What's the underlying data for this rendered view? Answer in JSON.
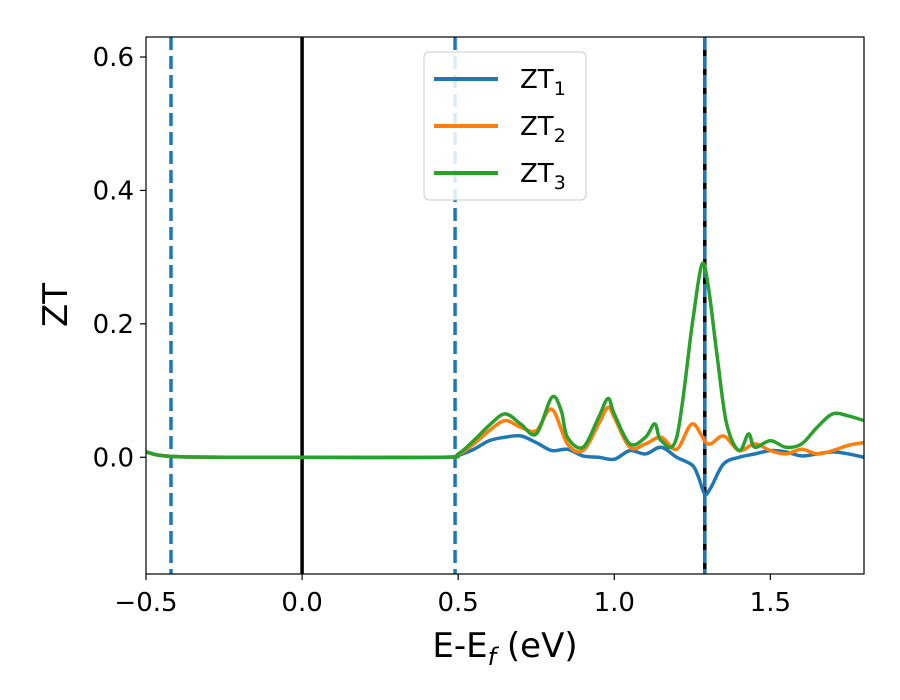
{
  "chart_data": {
    "type": "line",
    "title": "",
    "xlabel": "E-E",
    "xlabel_sub": "f",
    "xlabel_unit": " (eV)",
    "ylabel": "ZT",
    "xlim": [
      -0.5,
      1.8
    ],
    "ylim": [
      -0.175,
      0.63
    ],
    "xticks": [
      -0.5,
      0.0,
      0.5,
      1.0,
      1.5
    ],
    "xtick_labels": [
      "−0.5",
      "0.0",
      "0.5",
      "1.0",
      "1.5"
    ],
    "yticks": [
      0.0,
      0.2,
      0.4,
      0.6
    ],
    "ytick_labels": [
      "0.0",
      "0.2",
      "0.4",
      "0.6"
    ],
    "grid": false,
    "legend_position": "top-center",
    "vertical_lines": [
      {
        "x": -0.42,
        "style": "dashed",
        "color": "#1f77b4"
      },
      {
        "x": 0.0,
        "style": "solid",
        "color": "#000000"
      },
      {
        "x": 0.49,
        "style": "dashed",
        "color": "#1f77b4"
      },
      {
        "x": 1.29,
        "style": "solid",
        "color": "#000000"
      },
      {
        "x": 1.29,
        "style": "dashed",
        "color": "#1f77b4"
      }
    ],
    "series": [
      {
        "name": "ZT",
        "sub": "1",
        "color": "#1f77b4",
        "x": [
          -0.5,
          -0.4,
          0.0,
          0.45,
          0.5,
          0.55,
          0.6,
          0.65,
          0.7,
          0.75,
          0.8,
          0.85,
          0.9,
          0.95,
          1.0,
          1.05,
          1.1,
          1.15,
          1.2,
          1.25,
          1.27,
          1.29,
          1.31,
          1.35,
          1.4,
          1.45,
          1.5,
          1.55,
          1.6,
          1.65,
          1.7,
          1.75,
          1.8
        ],
        "y": [
          0.008,
          0.001,
          0.0,
          0.0,
          0.003,
          0.012,
          0.025,
          0.03,
          0.032,
          0.022,
          0.01,
          0.012,
          0.002,
          0.0,
          -0.003,
          0.01,
          0.005,
          0.015,
          0.0,
          -0.012,
          -0.03,
          -0.055,
          -0.045,
          -0.01,
          0.0,
          0.005,
          0.01,
          0.008,
          0.002,
          0.005,
          0.008,
          0.005,
          0.0
        ]
      },
      {
        "name": "ZT",
        "sub": "2",
        "color": "#ff7f0e",
        "x": [
          -0.5,
          -0.4,
          0.0,
          0.45,
          0.5,
          0.55,
          0.6,
          0.65,
          0.7,
          0.75,
          0.8,
          0.85,
          0.9,
          0.95,
          0.98,
          1.0,
          1.05,
          1.1,
          1.15,
          1.2,
          1.25,
          1.3,
          1.35,
          1.4,
          1.45,
          1.5,
          1.55,
          1.6,
          1.65,
          1.7,
          1.75,
          1.8
        ],
        "y": [
          0.008,
          0.001,
          0.0,
          0.0,
          0.004,
          0.02,
          0.04,
          0.055,
          0.045,
          0.04,
          0.072,
          0.02,
          0.01,
          0.05,
          0.075,
          0.06,
          0.015,
          0.02,
          0.03,
          0.012,
          0.05,
          0.02,
          0.032,
          0.01,
          0.02,
          0.01,
          0.005,
          0.012,
          0.005,
          0.01,
          0.018,
          0.022
        ]
      },
      {
        "name": "ZT",
        "sub": "3",
        "color": "#2ca02c",
        "x": [
          -0.5,
          -0.4,
          0.0,
          0.45,
          0.5,
          0.55,
          0.6,
          0.65,
          0.7,
          0.75,
          0.8,
          0.83,
          0.85,
          0.9,
          0.95,
          0.98,
          1.0,
          1.05,
          1.1,
          1.13,
          1.15,
          1.2,
          1.25,
          1.28,
          1.3,
          1.33,
          1.36,
          1.4,
          1.43,
          1.45,
          1.5,
          1.55,
          1.6,
          1.65,
          1.7,
          1.75,
          1.8
        ],
        "y": [
          0.008,
          0.001,
          0.0,
          0.0,
          0.005,
          0.025,
          0.048,
          0.065,
          0.05,
          0.035,
          0.09,
          0.07,
          0.03,
          0.015,
          0.06,
          0.088,
          0.065,
          0.02,
          0.03,
          0.05,
          0.025,
          0.03,
          0.2,
          0.288,
          0.26,
          0.15,
          0.05,
          0.01,
          0.035,
          0.015,
          0.025,
          0.015,
          0.02,
          0.045,
          0.065,
          0.062,
          0.055
        ]
      }
    ]
  }
}
